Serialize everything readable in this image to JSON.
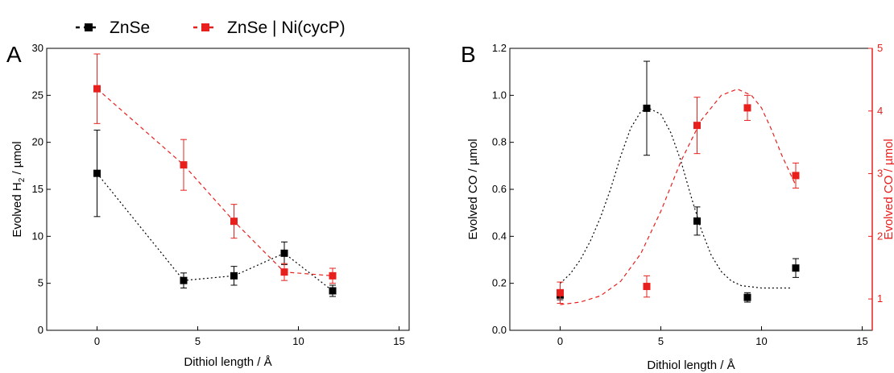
{
  "legend": {
    "items": [
      {
        "label": "ZnSe",
        "color": "#000000",
        "dash": "dotted"
      },
      {
        "label": "ZnSe | Ni(cycP)",
        "color": "#e8201d",
        "dash": "dashed"
      }
    ]
  },
  "chart_data": [
    {
      "type": "scatter",
      "panel_label": "A",
      "xlabel": "Dithiol length / Å",
      "ylabel_main": "Evolved H",
      "ylabel_sub": "2",
      "ylabel_rest": " / µmol",
      "xlim": [
        -2.5,
        15.5
      ],
      "ylim": [
        0,
        30
      ],
      "x_ticks": [
        0,
        5,
        10,
        15
      ],
      "y_ticks": [
        0,
        5,
        10,
        15,
        20,
        25,
        30
      ],
      "grid": false,
      "series": [
        {
          "name": "ZnSe",
          "color": "#000000",
          "line": "dotted",
          "points": [
            {
              "x": 0,
              "y": 16.7,
              "err": 4.6
            },
            {
              "x": 4.3,
              "y": 5.3,
              "err": 0.8
            },
            {
              "x": 6.8,
              "y": 5.8,
              "err": 1.0
            },
            {
              "x": 9.3,
              "y": 8.2,
              "err": 1.2
            },
            {
              "x": 11.7,
              "y": 4.2,
              "err": 0.6
            }
          ]
        },
        {
          "name": "ZnSe | Ni(cycP)",
          "color": "#e8201d",
          "line": "dashed",
          "points": [
            {
              "x": 0,
              "y": 25.7,
              "err": 3.7
            },
            {
              "x": 4.3,
              "y": 17.6,
              "err": 2.7
            },
            {
              "x": 6.8,
              "y": 11.6,
              "err": 1.8
            },
            {
              "x": 9.3,
              "y": 6.2,
              "err": 0.9
            },
            {
              "x": 11.7,
              "y": 5.8,
              "err": 0.8
            }
          ]
        }
      ]
    },
    {
      "type": "scatter",
      "panel_label": "B",
      "xlabel": "Dithiol length / Å",
      "ylabel_left": "Evolved CO / µmol",
      "ylabel_right": "Evolved CO / µmol",
      "xlim": [
        -2.5,
        15.5
      ],
      "ylim_left": [
        0,
        1.2
      ],
      "ylim_right": [
        0.5,
        5
      ],
      "x_ticks": [
        0,
        5,
        10,
        15
      ],
      "y_ticks_left": [
        "0.0",
        "0.2",
        "0.4",
        "0.6",
        "0.8",
        "1.0",
        "1.2"
      ],
      "y_ticks_right": [
        1,
        2,
        3,
        4,
        5
      ],
      "grid": false,
      "series": [
        {
          "name": "ZnSe",
          "color": "#000000",
          "axis": "left",
          "points": [
            {
              "x": 0,
              "y": 0.15,
              "err": 0.02
            },
            {
              "x": 4.3,
              "y": 0.945,
              "err": 0.2
            },
            {
              "x": 6.8,
              "y": 0.465,
              "err": 0.06
            },
            {
              "x": 9.3,
              "y": 0.14,
              "err": 0.02
            },
            {
              "x": 11.7,
              "y": 0.265,
              "err": 0.04
            }
          ],
          "fit_curve": [
            [
              0.0,
              0.2
            ],
            [
              0.5,
              0.24
            ],
            [
              1.0,
              0.3
            ],
            [
              1.5,
              0.38
            ],
            [
              2.0,
              0.48
            ],
            [
              2.5,
              0.6
            ],
            [
              3.0,
              0.74
            ],
            [
              3.5,
              0.86
            ],
            [
              4.0,
              0.93
            ],
            [
              4.4,
              0.945
            ],
            [
              5.0,
              0.92
            ],
            [
              5.5,
              0.84
            ],
            [
              6.0,
              0.72
            ],
            [
              6.5,
              0.57
            ],
            [
              7.0,
              0.43
            ],
            [
              7.5,
              0.32
            ],
            [
              8.0,
              0.25
            ],
            [
              8.5,
              0.21
            ],
            [
              9.0,
              0.19
            ],
            [
              10.0,
              0.18
            ],
            [
              11.5,
              0.18
            ]
          ]
        },
        {
          "name": "ZnSe | Ni(cycP)",
          "color": "#e8201d",
          "axis": "right",
          "points": [
            {
              "x": 0,
              "y": 1.1,
              "err": 0.17
            },
            {
              "x": 4.3,
              "y": 1.2,
              "err": 0.17
            },
            {
              "x": 6.8,
              "y": 3.77,
              "err": 0.45
            },
            {
              "x": 9.3,
              "y": 4.05,
              "err": 0.2
            },
            {
              "x": 11.7,
              "y": 2.97,
              "err": 0.2
            }
          ],
          "fit_curve": [
            [
              0.0,
              0.91
            ],
            [
              1.0,
              0.95
            ],
            [
              2.0,
              1.05
            ],
            [
              3.0,
              1.28
            ],
            [
              4.0,
              1.72
            ],
            [
              5.0,
              2.4
            ],
            [
              6.0,
              3.2
            ],
            [
              7.0,
              3.85
            ],
            [
              8.0,
              4.25
            ],
            [
              8.8,
              4.35
            ],
            [
              9.5,
              4.25
            ],
            [
              10.0,
              4.05
            ],
            [
              10.5,
              3.7
            ],
            [
              11.0,
              3.3
            ],
            [
              11.5,
              2.95
            ],
            [
              11.7,
              2.82
            ]
          ]
        }
      ]
    }
  ]
}
